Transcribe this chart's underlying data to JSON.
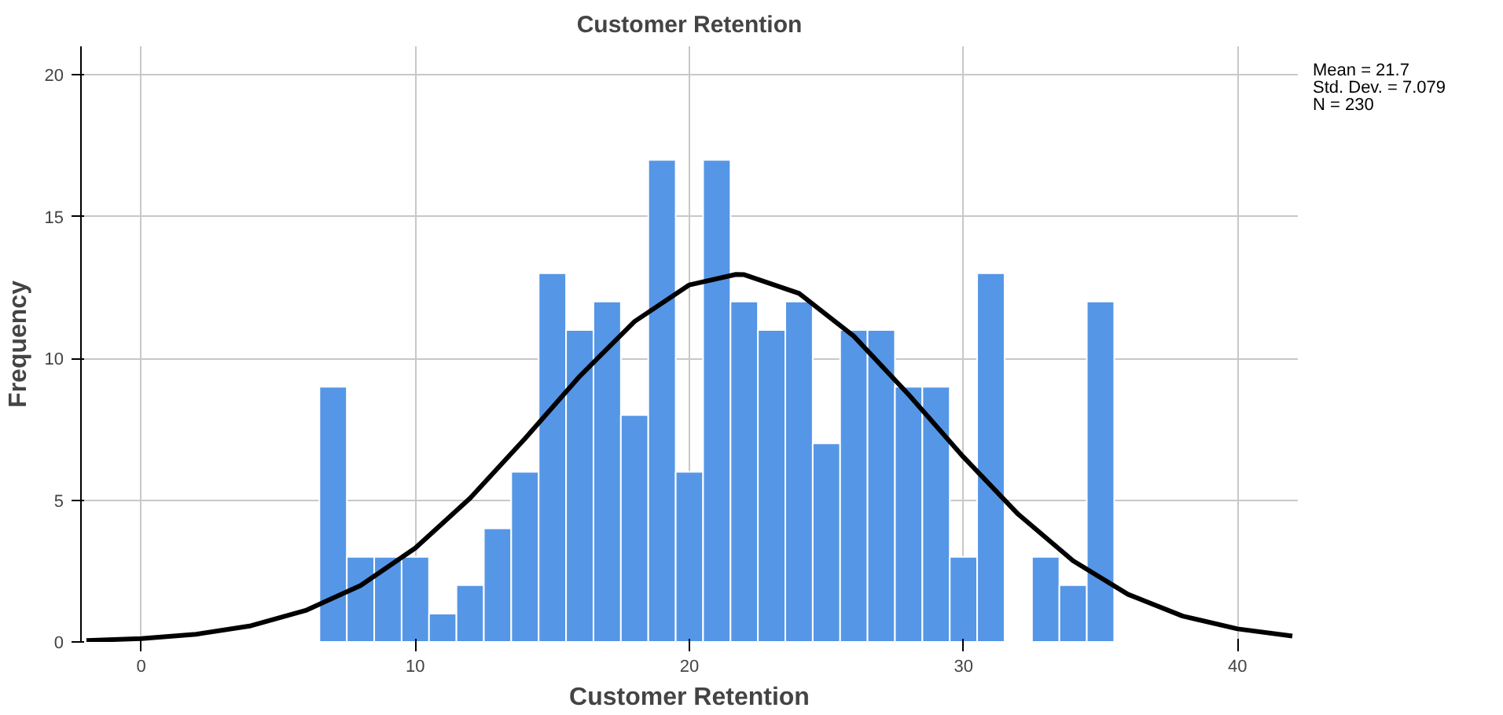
{
  "chart_data": {
    "type": "histogram",
    "title": "Customer Retention",
    "xlabel": "Customer Retention",
    "ylabel": "Frequency",
    "bins": [
      6.5,
      7.5,
      8.5,
      9.5,
      10.5,
      11.5,
      12.5,
      13.5,
      14.5,
      15.5,
      16.5,
      17.5,
      18.5,
      19.5,
      20.5,
      21.5,
      22.5,
      23.5,
      24.5,
      25.5,
      26.5,
      27.5,
      28.5,
      29.5,
      30.5,
      31.5,
      32.5,
      33.5,
      34.5,
      35.5
    ],
    "values": [
      9,
      3,
      3,
      3,
      1,
      2,
      4,
      6,
      13,
      11,
      12,
      8,
      17,
      6,
      17,
      12,
      11,
      12,
      7,
      11,
      11,
      9,
      9,
      3,
      13,
      0,
      3,
      2,
      12
    ],
    "color": "#5596e6",
    "series": [
      {
        "type": "line",
        "color": "#000000",
        "x": [
          -2,
          0,
          2,
          4,
          6,
          8,
          10,
          12,
          14,
          16,
          18,
          20,
          21.7,
          22,
          24,
          26,
          28,
          30,
          32,
          34,
          36,
          38,
          40,
          42
        ],
        "values": [
          0.05,
          0.12,
          0.27,
          0.57,
          1.11,
          1.99,
          3.31,
          5.07,
          7.17,
          9.37,
          11.3,
          12.59,
          12.96,
          12.95,
          12.29,
          10.78,
          8.72,
          6.52,
          4.5,
          2.86,
          1.68,
          0.91,
          0.46,
          0.21
        ]
      }
    ],
    "annotations": [
      "Mean = 21.7",
      "Std. Dev. = 7.079",
      "N = 230"
    ],
    "xlim": [
      -2.2,
      42.2
    ],
    "ylim": [
      0,
      21
    ],
    "xticks": [
      0,
      10,
      20,
      30,
      40
    ],
    "yticks": [
      0,
      5,
      10,
      15,
      20
    ],
    "grid": true
  }
}
